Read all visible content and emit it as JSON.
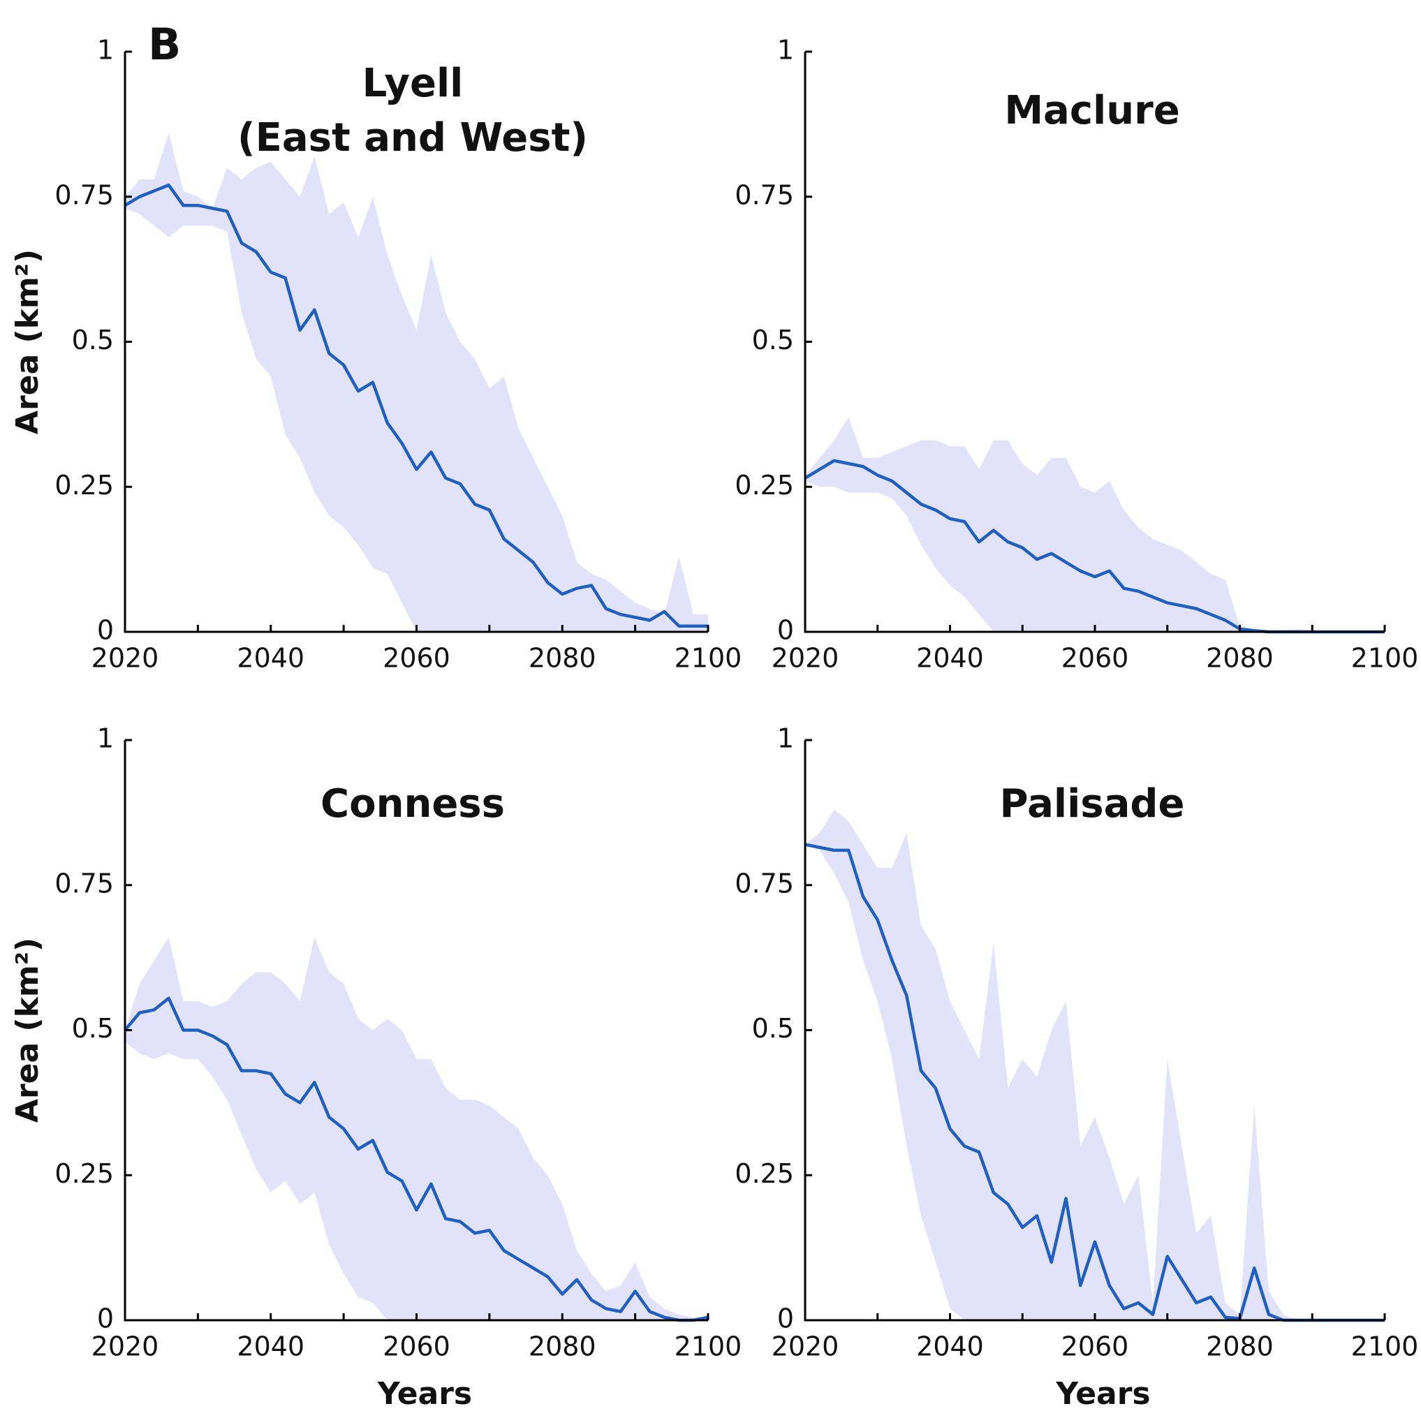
{
  "panel_label": "B",
  "chart_data": [
    {
      "type": "line",
      "title": "Lyell",
      "subtitle": "(East and West)",
      "ylabel": "Area (km²)",
      "xlim": [
        2020,
        2100
      ],
      "ylim": [
        0,
        1
      ],
      "xticks": [
        2020,
        2040,
        2060,
        2080,
        2100
      ],
      "xminorticks": [
        2030,
        2050,
        2070,
        2090
      ],
      "yticks": [
        0,
        0.25,
        0.5,
        0.75,
        1
      ],
      "x": [
        2020,
        2022,
        2024,
        2026,
        2028,
        2030,
        2032,
        2034,
        2036,
        2038,
        2040,
        2042,
        2044,
        2046,
        2048,
        2050,
        2052,
        2054,
        2056,
        2058,
        2060,
        2062,
        2064,
        2066,
        2068,
        2070,
        2072,
        2074,
        2076,
        2078,
        2080,
        2082,
        2084,
        2086,
        2088,
        2090,
        2092,
        2094,
        2096,
        2098,
        2100
      ],
      "color": "#1f5fbf",
      "band_color": "#e2e2fb",
      "values": [
        0.735,
        0.75,
        0.76,
        0.77,
        0.735,
        0.735,
        0.73,
        0.725,
        0.67,
        0.655,
        0.62,
        0.61,
        0.52,
        0.555,
        0.48,
        0.46,
        0.415,
        0.43,
        0.36,
        0.325,
        0.28,
        0.31,
        0.265,
        0.255,
        0.22,
        0.21,
        0.16,
        0.14,
        0.12,
        0.085,
        0.065,
        0.075,
        0.08,
        0.04,
        0.03,
        0.025,
        0.02,
        0.035,
        0.01,
        0.01,
        0.01
      ],
      "upper": [
        0.75,
        0.78,
        0.78,
        0.86,
        0.76,
        0.75,
        0.73,
        0.8,
        0.78,
        0.8,
        0.81,
        0.78,
        0.75,
        0.82,
        0.72,
        0.74,
        0.68,
        0.75,
        0.65,
        0.58,
        0.52,
        0.65,
        0.55,
        0.5,
        0.47,
        0.42,
        0.44,
        0.35,
        0.3,
        0.25,
        0.2,
        0.12,
        0.1,
        0.09,
        0.07,
        0.05,
        0.04,
        0.03,
        0.13,
        0.03,
        0.03
      ],
      "lower": [
        0.73,
        0.72,
        0.7,
        0.68,
        0.7,
        0.7,
        0.7,
        0.69,
        0.55,
        0.47,
        0.44,
        0.34,
        0.3,
        0.24,
        0.2,
        0.18,
        0.15,
        0.11,
        0.1,
        0.05,
        0,
        0,
        0,
        0,
        0,
        0,
        0,
        0,
        0,
        0,
        0,
        0,
        0,
        0,
        0,
        0,
        0,
        0,
        0,
        0,
        0
      ]
    },
    {
      "type": "line",
      "title": "Maclure",
      "xlim": [
        2020,
        2100
      ],
      "ylim": [
        0,
        1
      ],
      "xticks": [
        2020,
        2040,
        2060,
        2080,
        2100
      ],
      "xminorticks": [
        2030,
        2050,
        2070,
        2090
      ],
      "yticks": [
        0,
        0.25,
        0.5,
        0.75,
        1
      ],
      "x": [
        2020,
        2022,
        2024,
        2026,
        2028,
        2030,
        2032,
        2034,
        2036,
        2038,
        2040,
        2042,
        2044,
        2046,
        2048,
        2050,
        2052,
        2054,
        2056,
        2058,
        2060,
        2062,
        2064,
        2066,
        2068,
        2070,
        2072,
        2074,
        2076,
        2078,
        2080,
        2082,
        2084,
        2086,
        2088,
        2090,
        2092,
        2094,
        2096,
        2098,
        2100
      ],
      "color": "#1f5fbf",
      "band_color": "#e2e2fb",
      "values": [
        0.265,
        0.28,
        0.295,
        0.29,
        0.285,
        0.27,
        0.26,
        0.24,
        0.22,
        0.21,
        0.195,
        0.19,
        0.155,
        0.175,
        0.155,
        0.145,
        0.125,
        0.135,
        0.12,
        0.105,
        0.095,
        0.105,
        0.075,
        0.07,
        0.06,
        0.05,
        0.045,
        0.04,
        0.03,
        0.02,
        0.005,
        0.002,
        0,
        0,
        0,
        0,
        0,
        0,
        0,
        0,
        0
      ],
      "upper": [
        0.27,
        0.3,
        0.33,
        0.37,
        0.3,
        0.3,
        0.31,
        0.32,
        0.33,
        0.33,
        0.32,
        0.32,
        0.28,
        0.33,
        0.33,
        0.29,
        0.27,
        0.3,
        0.3,
        0.25,
        0.24,
        0.26,
        0.21,
        0.18,
        0.16,
        0.15,
        0.14,
        0.12,
        0.1,
        0.09,
        0.01,
        0.005,
        0.003,
        0.003,
        0.005,
        0.002,
        0,
        0,
        0,
        0,
        0
      ],
      "lower": [
        0.26,
        0.25,
        0.25,
        0.24,
        0.24,
        0.24,
        0.23,
        0.2,
        0.15,
        0.11,
        0.08,
        0.06,
        0.03,
        0,
        0,
        0,
        0,
        0,
        0,
        0,
        0,
        0,
        0,
        0,
        0,
        0,
        0,
        0,
        0,
        0,
        0,
        0,
        0,
        0,
        0,
        0,
        0,
        0,
        0,
        0,
        0
      ]
    },
    {
      "type": "line",
      "title": "Conness",
      "ylabel": "Area (km²)",
      "xlabel": "Years",
      "xlim": [
        2020,
        2100
      ],
      "ylim": [
        0,
        1
      ],
      "xticks": [
        2020,
        2040,
        2060,
        2080,
        2100
      ],
      "xminorticks": [
        2030,
        2050,
        2070,
        2090
      ],
      "yticks": [
        0,
        0.25,
        0.5,
        0.75,
        1
      ],
      "x": [
        2020,
        2022,
        2024,
        2026,
        2028,
        2030,
        2032,
        2034,
        2036,
        2038,
        2040,
        2042,
        2044,
        2046,
        2048,
        2050,
        2052,
        2054,
        2056,
        2058,
        2060,
        2062,
        2064,
        2066,
        2068,
        2070,
        2072,
        2074,
        2076,
        2078,
        2080,
        2082,
        2084,
        2086,
        2088,
        2090,
        2092,
        2094,
        2096,
        2098,
        2100
      ],
      "color": "#1f5fbf",
      "band_color": "#e2e2fb",
      "values": [
        0.5,
        0.53,
        0.535,
        0.555,
        0.5,
        0.5,
        0.49,
        0.475,
        0.43,
        0.43,
        0.425,
        0.39,
        0.375,
        0.41,
        0.35,
        0.33,
        0.295,
        0.31,
        0.255,
        0.24,
        0.19,
        0.235,
        0.175,
        0.17,
        0.15,
        0.155,
        0.12,
        0.105,
        0.09,
        0.075,
        0.045,
        0.07,
        0.035,
        0.02,
        0.015,
        0.05,
        0.015,
        0.005,
        0,
        0,
        0.005
      ],
      "upper": [
        0.5,
        0.58,
        0.62,
        0.66,
        0.55,
        0.55,
        0.54,
        0.55,
        0.58,
        0.6,
        0.6,
        0.58,
        0.55,
        0.66,
        0.6,
        0.58,
        0.52,
        0.5,
        0.52,
        0.5,
        0.45,
        0.45,
        0.4,
        0.38,
        0.38,
        0.37,
        0.35,
        0.33,
        0.28,
        0.25,
        0.2,
        0.12,
        0.08,
        0.05,
        0.06,
        0.1,
        0.04,
        0.02,
        0.01,
        0.005,
        0.005
      ],
      "lower": [
        0.48,
        0.46,
        0.45,
        0.46,
        0.45,
        0.45,
        0.42,
        0.38,
        0.32,
        0.26,
        0.22,
        0.24,
        0.2,
        0.22,
        0.13,
        0.08,
        0.04,
        0.03,
        0,
        0,
        0,
        0,
        0,
        0,
        0,
        0,
        0,
        0,
        0,
        0,
        0,
        0,
        0,
        0,
        0,
        0,
        0,
        0,
        0,
        0,
        0
      ]
    },
    {
      "type": "line",
      "title": "Palisade",
      "xlabel": "Years",
      "xlim": [
        2020,
        2100
      ],
      "ylim": [
        0,
        1
      ],
      "xticks": [
        2020,
        2040,
        2060,
        2080,
        2100
      ],
      "xminorticks": [
        2030,
        2050,
        2070,
        2090
      ],
      "yticks": [
        0,
        0.25,
        0.5,
        0.75,
        1
      ],
      "x": [
        2020,
        2022,
        2024,
        2026,
        2028,
        2030,
        2032,
        2034,
        2036,
        2038,
        2040,
        2042,
        2044,
        2046,
        2048,
        2050,
        2052,
        2054,
        2056,
        2058,
        2060,
        2062,
        2064,
        2066,
        2068,
        2070,
        2072,
        2074,
        2076,
        2078,
        2080,
        2082,
        2084,
        2086,
        2088,
        2090,
        2092,
        2094,
        2096,
        2098,
        2100
      ],
      "color": "#1f5fbf",
      "band_color": "#e2e2fb",
      "values": [
        0.82,
        0.815,
        0.81,
        0.81,
        0.73,
        0.69,
        0.62,
        0.56,
        0.43,
        0.4,
        0.33,
        0.3,
        0.29,
        0.22,
        0.2,
        0.16,
        0.18,
        0.1,
        0.21,
        0.06,
        0.135,
        0.06,
        0.02,
        0.03,
        0.01,
        0.11,
        0.07,
        0.03,
        0.04,
        0.005,
        0.003,
        0.09,
        0.01,
        0,
        0,
        0,
        0,
        0,
        0,
        0,
        0
      ],
      "upper": [
        0.82,
        0.84,
        0.88,
        0.86,
        0.82,
        0.78,
        0.78,
        0.84,
        0.68,
        0.64,
        0.55,
        0.5,
        0.45,
        0.65,
        0.4,
        0.45,
        0.42,
        0.5,
        0.55,
        0.3,
        0.35,
        0.28,
        0.2,
        0.25,
        0.03,
        0.45,
        0.3,
        0.15,
        0.18,
        0.03,
        0.01,
        0.37,
        0.05,
        0.01,
        0,
        0,
        0,
        0,
        0,
        0,
        0
      ],
      "lower": [
        0.82,
        0.81,
        0.77,
        0.72,
        0.62,
        0.55,
        0.45,
        0.3,
        0.18,
        0.1,
        0.02,
        0,
        0,
        0,
        0,
        0,
        0,
        0,
        0,
        0,
        0,
        0,
        0,
        0,
        0,
        0,
        0,
        0,
        0,
        0,
        0,
        0,
        0,
        0,
        0,
        0,
        0,
        0,
        0,
        0,
        0
      ]
    }
  ]
}
